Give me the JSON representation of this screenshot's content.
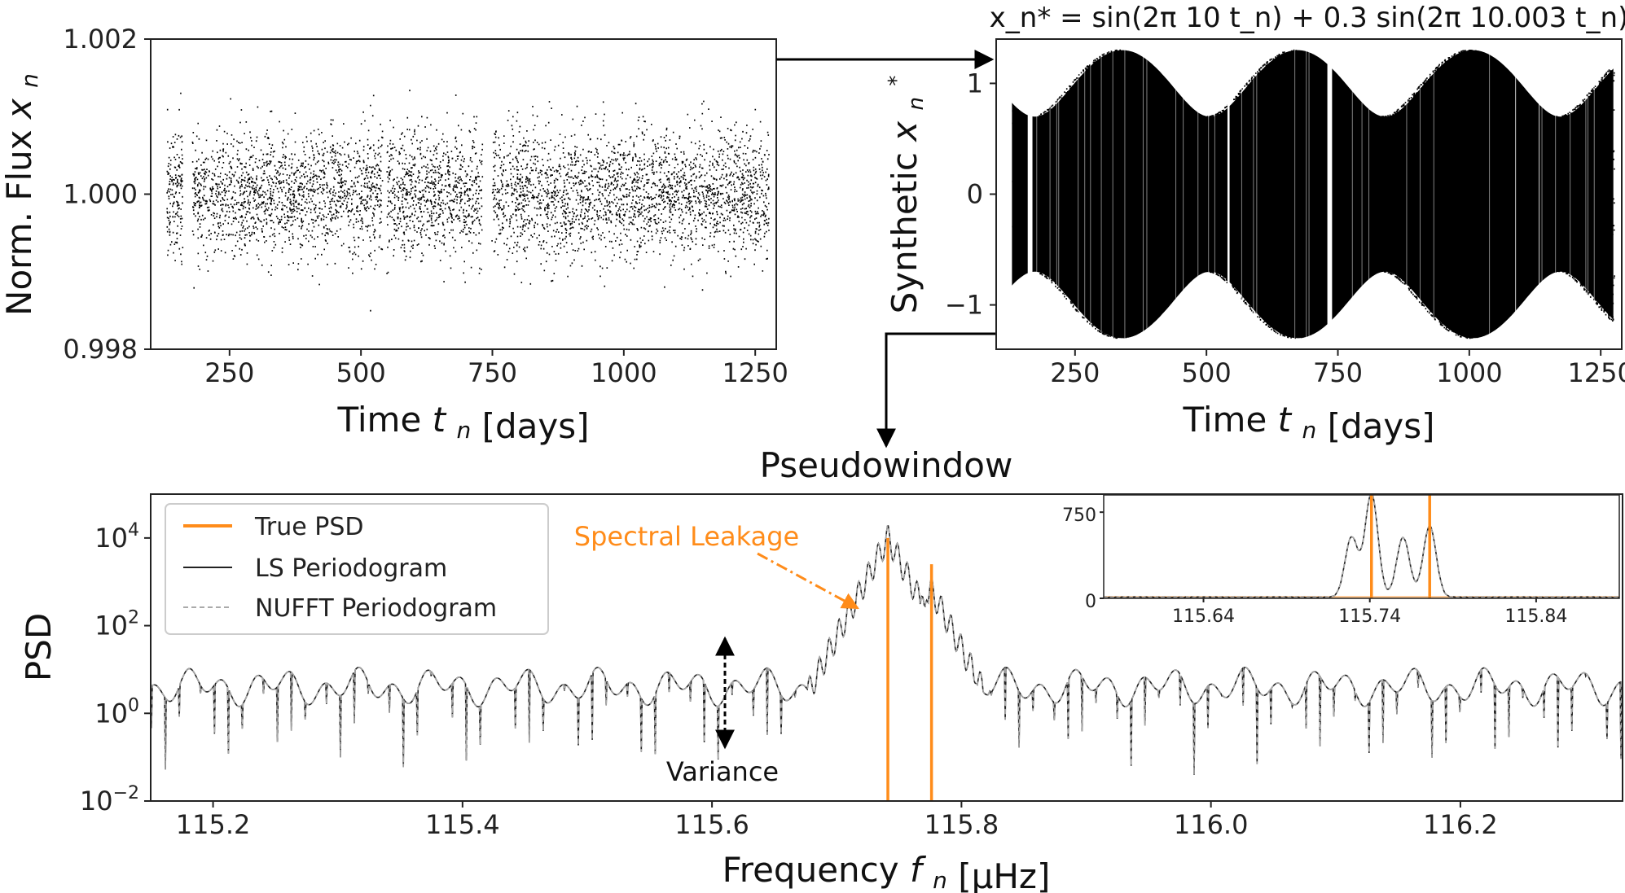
{
  "chart_data": [
    {
      "id": "flux",
      "type": "scatter",
      "ylabel": "Norm. Flux",
      "ylabel_var": "x",
      "ylabel_sub": "n",
      "xlabel": "Time",
      "xlabel_var": "t",
      "xlabel_sub": "n",
      "xlabel_unit": "[days]",
      "xlim": [
        100,
        1290
      ],
      "ylim": [
        0.998,
        1.002
      ],
      "xticks": [
        250,
        500,
        750,
        1000,
        1250
      ],
      "xtick_labels": [
        "250",
        "500",
        "750",
        "1000",
        "1250"
      ],
      "yticks": [
        0.998,
        1.0,
        1.002
      ],
      "ytick_labels": [
        "0.998",
        "1.000",
        "1.002"
      ],
      "data_x_range": [
        130,
        1275
      ],
      "data_center": 1.0,
      "data_spread": 0.0004,
      "gaps": [
        [
          160,
          178
        ],
        [
          540,
          548
        ],
        [
          730,
          748
        ]
      ]
    },
    {
      "id": "synthetic",
      "type": "scatter",
      "title": "x_n* = sin(2π 10 t_n) + 0.3 sin(2π 10.003 t_n)",
      "ylabel": "Synthetic",
      "ylabel_var": "x",
      "ylabel_sub": "n",
      "ylabel_sup": "*",
      "xlabel": "Time",
      "xlabel_var": "t",
      "xlabel_sub": "n",
      "xlabel_unit": "[days]",
      "xlim": [
        100,
        1290
      ],
      "ylim": [
        -1.4,
        1.4
      ],
      "xticks": [
        250,
        500,
        750,
        1000,
        1250
      ],
      "xtick_labels": [
        "250",
        "500",
        "750",
        "1000",
        "1250"
      ],
      "yticks": [
        1,
        0,
        -1
      ],
      "ytick_labels": [
        "1",
        "0",
        "−1"
      ],
      "series": [
        {
          "name": "sin(2π 10 t)",
          "freq_cycles_per_day": 10,
          "amplitude": 1.0
        },
        {
          "name": "0.3 sin(2π 10.003 t)",
          "freq_cycles_per_day": 10.003,
          "amplitude": 0.3
        }
      ],
      "beat_period_days": 333.3,
      "data_x_range": [
        130,
        1275
      ],
      "gaps": [
        [
          160,
          178
        ],
        [
          540,
          548
        ],
        [
          730,
          748
        ]
      ]
    },
    {
      "id": "psd",
      "type": "line",
      "title": "Pseudowindow",
      "ylabel": "PSD",
      "xlabel": "Frequency",
      "xlabel_var": "f",
      "xlabel_sub": "n",
      "xlabel_unit": "[μHz]",
      "yscale": "log",
      "xlim": [
        115.15,
        116.33
      ],
      "ylim_log10": [
        -2,
        5
      ],
      "xticks": [
        115.2,
        115.4,
        115.6,
        115.8,
        116.0,
        116.2
      ],
      "xtick_labels": [
        "115.2",
        "115.4",
        "115.6",
        "115.8",
        "116.0",
        "116.2"
      ],
      "yticks_log10": [
        -2,
        0,
        2,
        4
      ],
      "ytick_labels": [
        {
          "base": "10",
          "exp": "−2"
        },
        {
          "base": "10",
          "exp": "0"
        },
        {
          "base": "10",
          "exp": "2"
        },
        {
          "base": "10",
          "exp": "4"
        }
      ],
      "true_psd_lines": [
        {
          "freq": 115.741,
          "log10_top": 4.0
        },
        {
          "freq": 115.776,
          "log10_top": 3.4
        }
      ],
      "peaks": [
        {
          "freq": 115.741,
          "log10_value": 4.0
        },
        {
          "freq": 115.776,
          "log10_value": 2.8
        }
      ],
      "baseline_log10": 0.6,
      "legend": {
        "location": "upper-left",
        "entries": [
          {
            "label": "True PSD",
            "style": "orange-solid"
          },
          {
            "label": "LS Periodogram",
            "style": "black-solid"
          },
          {
            "label": "NUFFT Periodogram",
            "style": "gray-dashed"
          }
        ]
      },
      "annotations": {
        "spectral_leakage": "Spectral Leakage",
        "variance": "Variance"
      },
      "inset": {
        "type": "line",
        "yscale": "linear",
        "xlim": [
          115.58,
          115.89
        ],
        "ylim": [
          0,
          900
        ],
        "xticks": [
          115.64,
          115.74,
          115.84
        ],
        "xtick_labels": [
          "115.64",
          "115.74",
          "115.84"
        ],
        "yticks": [
          0,
          750
        ],
        "ytick_labels": [
          "0",
          "750"
        ],
        "true_psd_lines": [
          115.741,
          115.776
        ],
        "peaks": [
          {
            "freq": 115.729,
            "value": 520
          },
          {
            "freq": 115.741,
            "value": 900
          },
          {
            "freq": 115.76,
            "value": 520
          },
          {
            "freq": 115.776,
            "value": 620
          }
        ]
      }
    }
  ],
  "colors": {
    "true_psd": "#ff8c1a",
    "periodogram": "#222222",
    "nufft": "#aaaaaa",
    "scatter": "#000000"
  }
}
